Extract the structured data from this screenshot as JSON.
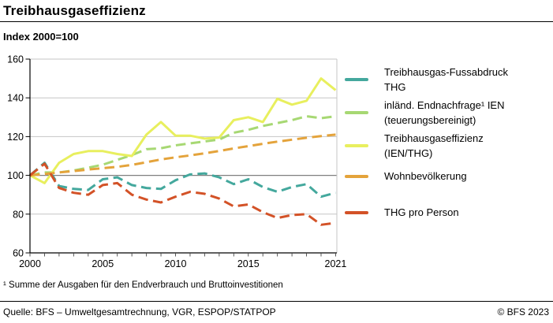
{
  "header": {
    "title": "Treibhausgaseffizienz",
    "subtitle": "Index 2000=100"
  },
  "chart_data": {
    "type": "line",
    "x": [
      2000,
      2001,
      2002,
      2003,
      2004,
      2005,
      2006,
      2007,
      2008,
      2009,
      2010,
      2011,
      2012,
      2013,
      2014,
      2015,
      2016,
      2017,
      2018,
      2019,
      2020,
      2021
    ],
    "x_ticks_labeled": [
      2000,
      2005,
      2010,
      2015,
      2021
    ],
    "y_ticks": [
      60,
      80,
      100,
      120,
      140,
      160
    ],
    "ylim": [
      60,
      160
    ],
    "reference_line": 100,
    "grid": true,
    "legend_position": "right",
    "series": [
      {
        "name": "Treibhausgas-Fussabdruck THG",
        "color": "#44a89d",
        "dashed": true,
        "values": [
          100,
          106.5,
          94.5,
          93,
          92.5,
          98,
          99,
          95,
          93.5,
          93,
          97.5,
          100.5,
          101,
          99,
          95.5,
          98,
          94,
          91.5,
          94,
          95.5,
          89,
          91
        ]
      },
      {
        "name": "inländ. Endnachfrage¹ IEN (teuerungsbereinigt)",
        "color": "#a7d873",
        "dashed": true,
        "values": [
          100,
          101.5,
          101.5,
          102.5,
          104,
          105.5,
          108,
          110.5,
          113.5,
          114,
          115.5,
          116.5,
          117.5,
          118.5,
          122,
          123.5,
          125.5,
          127,
          128.5,
          130.5,
          129.5,
          130.5
        ]
      },
      {
        "name": "Treibhausgaseffizienz (IEN/THG)",
        "color": "#e8ef5e",
        "dashed": false,
        "values": [
          100,
          96,
          106.5,
          111,
          112.5,
          112.5,
          111,
          110,
          121,
          127.5,
          120.5,
          120.5,
          119,
          119.5,
          128.5,
          130,
          127.5,
          139.5,
          136.5,
          138.5,
          150,
          144
        ]
      },
      {
        "name": "Wohnbevölkerung",
        "color": "#e4a33b",
        "dashed": true,
        "values": [
          100,
          100.7,
          101.5,
          102.2,
          103,
          103.7,
          104.4,
          105.4,
          106.8,
          108.2,
          109.3,
          110.3,
          111.4,
          112.6,
          113.9,
          115.1,
          116.3,
          117.4,
          118.4,
          119.4,
          120.3,
          121
        ]
      },
      {
        "name": "THG pro Person",
        "color": "#d35227",
        "dashed": true,
        "values": [
          100,
          106,
          93.5,
          91,
          90,
          95,
          96,
          90,
          87.5,
          86,
          89,
          91.5,
          90.5,
          88,
          84,
          85,
          81,
          78,
          79.5,
          80,
          74.5,
          75.5
        ]
      }
    ]
  },
  "legend": {
    "items": [
      {
        "series_index": 0,
        "label_lines": [
          "Treibhausgas-Fussabdruck",
          "THG"
        ]
      },
      {
        "series_index": 1,
        "label_lines": [
          "inländ. Endnachfrage¹ IEN",
          "(teuerungsbereinigt)"
        ]
      },
      {
        "series_index": 2,
        "label_lines": [
          "Treibhausgaseffizienz",
          "(IEN/THG)"
        ]
      },
      {
        "series_index": 3,
        "label_lines": [
          "Wohnbevölkerung"
        ]
      },
      {
        "series_index": 4,
        "label_lines": [
          "THG pro Person"
        ]
      }
    ]
  },
  "footnote": "¹ Summe der Ausgaben für den Endverbrauch und Bruttoinvestitionen",
  "footer": {
    "source": "Quelle: BFS – Umweltgesamtrechnung, VGR, ESPOP/STATPOP",
    "copyright": "© BFS 2023"
  }
}
